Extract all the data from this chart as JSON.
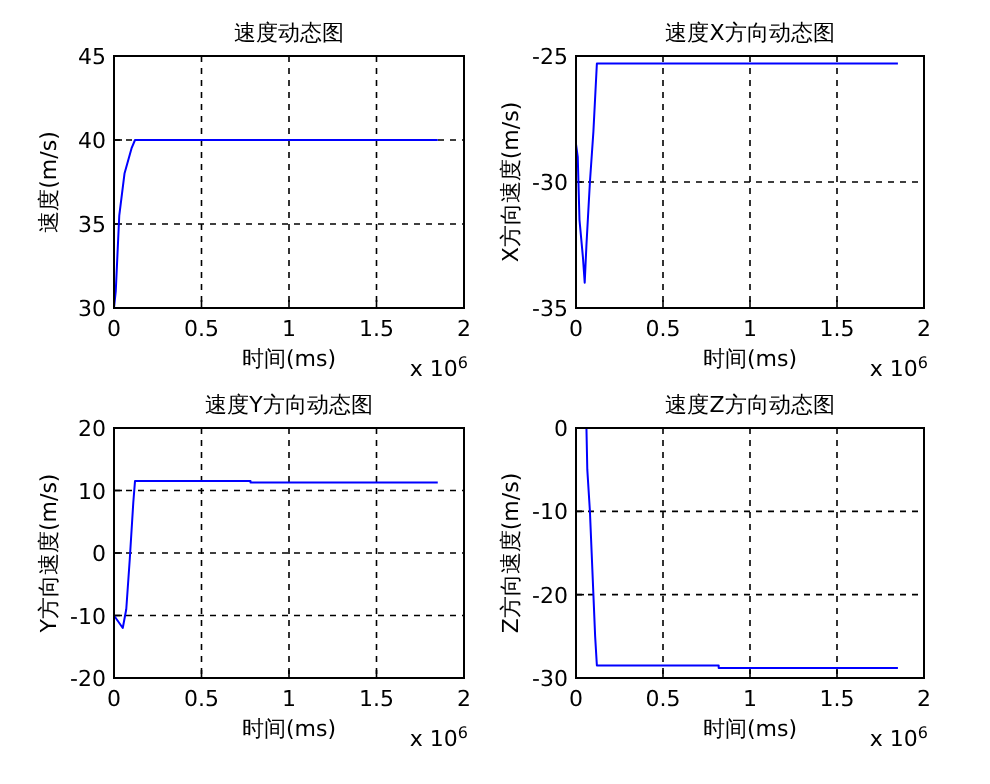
{
  "chart_data": [
    {
      "type": "line",
      "title": "速度动态图",
      "xlabel": "时间(ms)",
      "ylabel": "速度(m/s)",
      "xlim": [
        0,
        2
      ],
      "ylim": [
        30,
        45
      ],
      "xticks": [
        0,
        0.5,
        1,
        1.5,
        2
      ],
      "yticks": [
        30,
        35,
        40,
        45
      ],
      "grid": true,
      "annotations": [
        "x 10$^{6}$"
      ],
      "series": [
        {
          "color": "#0000ff",
          "x": [
            0,
            0.01,
            0.03,
            0.06,
            0.1,
            0.12,
            1.85
          ],
          "values": [
            30,
            31,
            35.5,
            38,
            39.5,
            40,
            40
          ]
        }
      ]
    },
    {
      "type": "line",
      "title": "速度X方向动态图",
      "xlabel": "时间(ms)",
      "ylabel": "X方向速度(m/s)",
      "xlim": [
        0,
        2
      ],
      "ylim": [
        -35,
        -25
      ],
      "xticks": [
        0,
        0.5,
        1,
        1.5,
        2
      ],
      "yticks": [
        -35,
        -30,
        -25
      ],
      "grid": true,
      "annotations": [
        "x 10$^{6}$"
      ],
      "series": [
        {
          "color": "#0000ff",
          "x": [
            0,
            0.01,
            0.02,
            0.04,
            0.05,
            0.06,
            0.08,
            0.1,
            0.12,
            1.85
          ],
          "values": [
            -28.5,
            -29,
            -31.5,
            -33,
            -34,
            -32.5,
            -30,
            -28,
            -25.3,
            -25.3
          ]
        }
      ]
    },
    {
      "type": "line",
      "title": "速度Y方向动态图",
      "xlabel": "时间(ms)",
      "ylabel": "Y方向速度(m/s)",
      "xlim": [
        0,
        2
      ],
      "ylim": [
        -20,
        20
      ],
      "xticks": [
        0,
        0.5,
        1,
        1.5,
        2
      ],
      "yticks": [
        -20,
        -10,
        0,
        10,
        20
      ],
      "grid": true,
      "annotations": [
        "x 10$^{6}$"
      ],
      "series": [
        {
          "color": "#0000ff",
          "x": [
            0,
            0.05,
            0.07,
            0.09,
            0.11,
            0.12,
            0.78,
            0.78,
            1.85
          ],
          "values": [
            -10,
            -12,
            -9,
            -1,
            8,
            11.5,
            11.5,
            11.3,
            11.3
          ]
        }
      ]
    },
    {
      "type": "line",
      "title": "速度Z方向动态图",
      "xlabel": "时间(ms)",
      "ylabel": "Z方向速度(m/s)",
      "xlim": [
        0,
        2
      ],
      "ylim": [
        -30,
        0
      ],
      "xticks": [
        0,
        0.5,
        1,
        1.5,
        2
      ],
      "yticks": [
        -30,
        -20,
        -10,
        0
      ],
      "grid": true,
      "annotations": [
        "x 10$^{6}$"
      ],
      "series": [
        {
          "color": "#0000ff",
          "x": [
            0,
            0.06,
            0.065,
            0.08,
            0.09,
            0.1,
            0.11,
            0.12,
            0.82,
            0.82,
            1.85
          ],
          "values": [
            0,
            0,
            -5,
            -10,
            -15,
            -20,
            -25,
            -28.5,
            -28.5,
            -28.8,
            -28.8
          ]
        }
      ]
    }
  ]
}
